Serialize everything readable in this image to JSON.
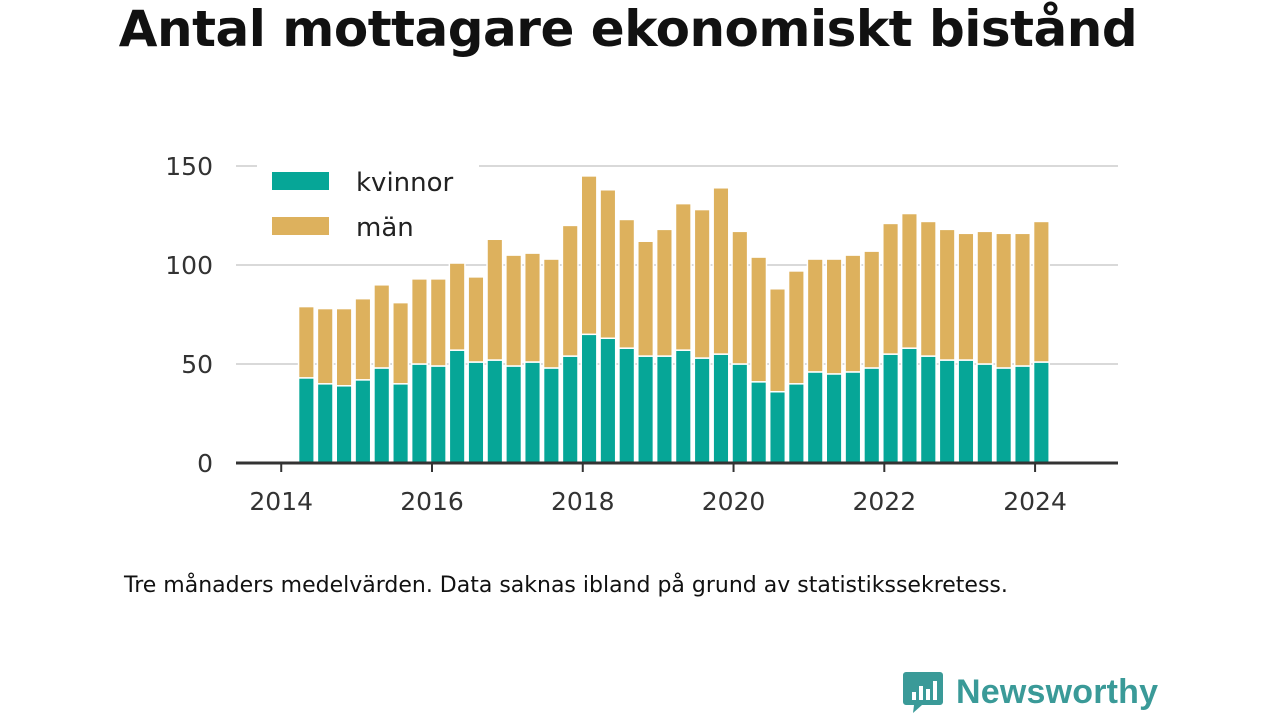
{
  "title": "Antal mottagare ekonomiskt bistånd",
  "note": "Tre månaders medelvärden. Data saknas ibland på grund av statistikssekretess.",
  "brand": {
    "name": "Newsworthy",
    "icon": "chart-bubble-icon"
  },
  "colors": {
    "kvinnor": "#06a697",
    "man": "#ddb15d",
    "grid": "#d9d9d9",
    "axis": "#333333",
    "brand": "#3a9a98"
  },
  "chart_data": {
    "type": "bar",
    "stacked": true,
    "title": "Antal mottagare ekonomiskt bistånd",
    "xlabel": "",
    "ylabel": "",
    "ylim": [
      0,
      150
    ],
    "yticks": [
      0,
      50,
      100,
      150
    ],
    "xticks": [
      "2014",
      "2016",
      "2018",
      "2020",
      "2022",
      "2024"
    ],
    "grid": true,
    "legend": "top-left",
    "categories": [
      "2014-05",
      "2014-08",
      "2014-11",
      "2015-02",
      "2015-05",
      "2015-08",
      "2015-11",
      "2016-02",
      "2016-05",
      "2016-08",
      "2016-11",
      "2017-02",
      "2017-05",
      "2017-08",
      "2017-11",
      "2018-02",
      "2018-05",
      "2018-08",
      "2018-11",
      "2019-02",
      "2019-05",
      "2019-08",
      "2019-11",
      "2020-02",
      "2020-05",
      "2020-08",
      "2020-11",
      "2021-02",
      "2021-05",
      "2021-08",
      "2021-11",
      "2022-02",
      "2022-05",
      "2022-08",
      "2022-11",
      "2023-02",
      "2023-05",
      "2023-08",
      "2023-11",
      "2024-02"
    ],
    "series": [
      {
        "name": "kvinnor",
        "values": [
          43,
          40,
          39,
          42,
          48,
          40,
          50,
          49,
          57,
          51,
          52,
          49,
          51,
          48,
          54,
          65,
          63,
          58,
          54,
          54,
          57,
          53,
          55,
          50,
          41,
          36,
          40,
          46,
          45,
          46,
          48,
          55,
          58,
          54,
          52,
          52,
          50,
          48,
          49,
          51
        ]
      },
      {
        "name": "män",
        "values": [
          36,
          38,
          39,
          41,
          42,
          41,
          43,
          44,
          44,
          43,
          61,
          56,
          55,
          55,
          66,
          80,
          75,
          65,
          58,
          64,
          74,
          75,
          84,
          67,
          63,
          52,
          57,
          57,
          58,
          59,
          59,
          66,
          68,
          68,
          66,
          64,
          67,
          68,
          67,
          71
        ]
      }
    ]
  }
}
